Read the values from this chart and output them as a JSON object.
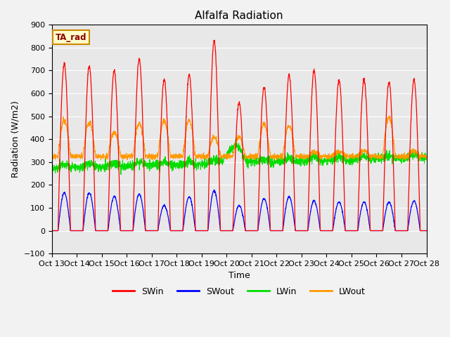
{
  "title": "Alfalfa Radiation",
  "ylabel": "Radiation (W/m2)",
  "xlabel": "Time",
  "ylim": [
    -100,
    900
  ],
  "annotation_text": "TA_rad",
  "legend_labels": [
    "SWin",
    "SWout",
    "LWin",
    "LWout"
  ],
  "line_colors": {
    "SWin": "#ff0000",
    "SWout": "#0000ff",
    "LWin": "#00dd00",
    "LWout": "#ff9900"
  },
  "xtick_labels": [
    "Oct 13",
    "Oct 14",
    "Oct 15",
    "Oct 16",
    "Oct 17",
    "Oct 18",
    "Oct 19",
    "Oct 20",
    "Oct 21",
    "Oct 22",
    "Oct 23",
    "Oct 24",
    "Oct 25",
    "Oct 26",
    "Oct 27",
    "Oct 28"
  ],
  "xtick_positions": [
    0,
    24,
    48,
    72,
    96,
    120,
    144,
    168,
    192,
    216,
    240,
    264,
    288,
    312,
    336,
    360
  ],
  "n_points": 2160,
  "background_color": "#e8e8e8",
  "fig_background": "#f2f2f2",
  "title_fontsize": 11,
  "axis_label_fontsize": 9,
  "tick_fontsize": 8,
  "legend_fontsize": 9,
  "swin_peaks": [
    730,
    720,
    700,
    750,
    660,
    680,
    830,
    560,
    630,
    680,
    700,
    660,
    660,
    650,
    660
  ],
  "swout_peaks": [
    165,
    165,
    150,
    160,
    110,
    148,
    175,
    110,
    140,
    148,
    130,
    125,
    125,
    125,
    130
  ],
  "lwout_day_peaks": [
    480,
    475,
    430,
    470,
    480,
    480,
    410,
    410,
    465,
    460,
    345,
    345,
    350,
    495,
    350
  ],
  "lwout_base": 325,
  "lwin_base": 275
}
